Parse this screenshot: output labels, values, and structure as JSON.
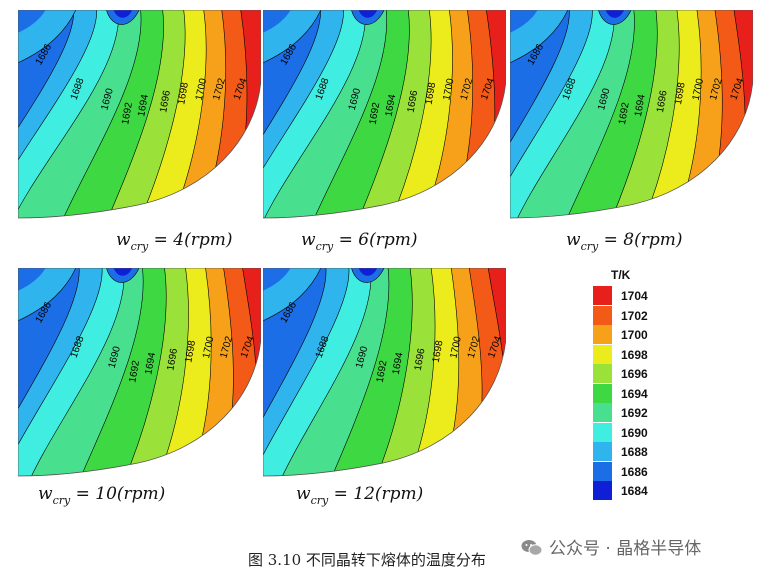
{
  "panels": [
    {
      "caption_prefix": "w",
      "caption_sub": "cry",
      "caption_rest": " = 4(rpm)"
    },
    {
      "caption_prefix": "w",
      "caption_sub": "cry",
      "caption_rest": " = 6(rpm)"
    },
    {
      "caption_prefix": "w",
      "caption_sub": "cry",
      "caption_rest": " = 8(rpm)"
    },
    {
      "caption_prefix": "w",
      "caption_sub": "cry",
      "caption_rest": " = 10(rpm)"
    },
    {
      "caption_prefix": "w",
      "caption_sub": "cry",
      "caption_rest": " = 12(rpm)"
    }
  ],
  "contour_labels": [
    "1686",
    "1688",
    "1690",
    "1692",
    "1694",
    "1696",
    "1698",
    "1700",
    "1702",
    "1704"
  ],
  "legend": {
    "title": "T/K",
    "items": [
      {
        "label": "1704",
        "color": "#e8201c"
      },
      {
        "label": "1702",
        "color": "#f45a17"
      },
      {
        "label": "1700",
        "color": "#f7a11a"
      },
      {
        "label": "1698",
        "color": "#ecec1c"
      },
      {
        "label": "1696",
        "color": "#9ae23a"
      },
      {
        "label": "1694",
        "color": "#3ed843"
      },
      {
        "label": "1692",
        "color": "#48e08e"
      },
      {
        "label": "1690",
        "color": "#3feee0"
      },
      {
        "label": "1688",
        "color": "#2fb4ee"
      },
      {
        "label": "1686",
        "color": "#1c6ee6"
      },
      {
        "label": "1684",
        "color": "#0f1fd6"
      }
    ]
  },
  "figure_caption": "图 3.10 不同晶转下熔体的温度分布",
  "watermark": "公众号 · 晶格半导体"
}
